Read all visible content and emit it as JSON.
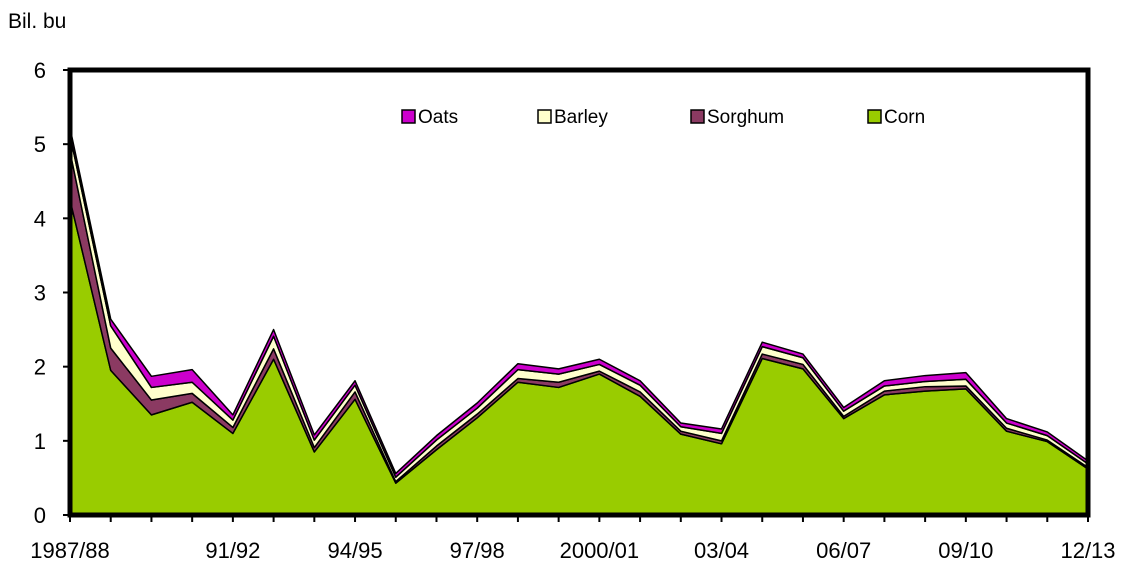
{
  "chart_data": {
    "type": "area",
    "stacked": true,
    "ylabel": "Bil. bu",
    "ylim": [
      0,
      6
    ],
    "yticks": [
      0,
      1,
      2,
      3,
      4,
      5,
      6
    ],
    "x": [
      "1987/88",
      "1988/89",
      "1989/90",
      "1990/91",
      "1991/92",
      "1992/93",
      "1993/94",
      "1994/95",
      "1995/96",
      "1996/97",
      "1997/98",
      "1998/99",
      "1999/2000",
      "2000/01",
      "2001/02",
      "2002/03",
      "2003/04",
      "2004/05",
      "2005/06",
      "2006/07",
      "2007/08",
      "2008/09",
      "2009/10",
      "2010/11",
      "2011/12",
      "2012/13"
    ],
    "xtick_labels": {
      "0": "1987/88",
      "4": "91/92",
      "7": "94/95",
      "10": "97/98",
      "13": "2000/01",
      "16": "03/04",
      "19": "06/07",
      "22": "09/10",
      "25": "12/13"
    },
    "legend_position": "top",
    "series": [
      {
        "name": "Corn",
        "color": "#99cc00",
        "values": [
          4.25,
          1.95,
          1.35,
          1.52,
          1.1,
          2.1,
          0.85,
          1.56,
          0.43,
          0.88,
          1.31,
          1.79,
          1.72,
          1.9,
          1.6,
          1.09,
          0.96,
          2.11,
          1.97,
          1.3,
          1.62,
          1.67,
          1.7,
          1.13,
          0.99,
          0.62
        ]
      },
      {
        "name": "Sorghum",
        "color": "#8b3a62",
        "values": [
          0.65,
          0.3,
          0.2,
          0.12,
          0.08,
          0.14,
          0.06,
          0.1,
          0.02,
          0.05,
          0.05,
          0.05,
          0.07,
          0.04,
          0.06,
          0.04,
          0.04,
          0.06,
          0.06,
          0.03,
          0.05,
          0.06,
          0.04,
          0.04,
          0.02,
          0.02
        ]
      },
      {
        "name": "Barley",
        "color": "#ffffcc",
        "values": [
          0.22,
          0.3,
          0.17,
          0.15,
          0.1,
          0.17,
          0.1,
          0.09,
          0.06,
          0.08,
          0.08,
          0.12,
          0.11,
          0.09,
          0.09,
          0.06,
          0.1,
          0.1,
          0.09,
          0.07,
          0.07,
          0.07,
          0.09,
          0.07,
          0.06,
          0.05
        ]
      },
      {
        "name": "Oats",
        "color": "#cc00cc",
        "values": [
          0.1,
          0.09,
          0.15,
          0.17,
          0.07,
          0.09,
          0.07,
          0.06,
          0.05,
          0.06,
          0.07,
          0.08,
          0.07,
          0.07,
          0.06,
          0.05,
          0.06,
          0.06,
          0.05,
          0.05,
          0.07,
          0.08,
          0.09,
          0.06,
          0.05,
          0.04
        ]
      }
    ]
  }
}
